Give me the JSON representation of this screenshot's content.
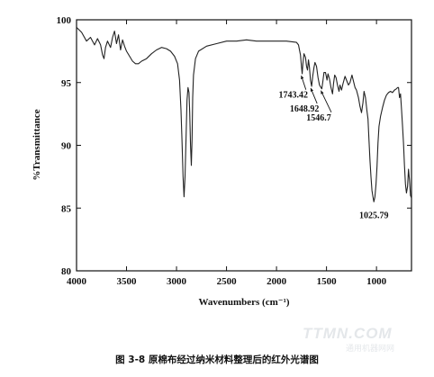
{
  "chart_data": {
    "type": "line",
    "xlabel": "Wavenumbers (cm⁻¹)",
    "ylabel": "%Transmittance",
    "xlim": [
      4000,
      650
    ],
    "ylim": [
      80,
      100
    ],
    "x_ticks": [
      4000,
      3500,
      3000,
      2500,
      2000,
      1500,
      1000
    ],
    "y_ticks": [
      80,
      85,
      90,
      95,
      100
    ],
    "grid": false,
    "series": [
      {
        "color": "#222222",
        "points": [
          [
            4000,
            99.4
          ],
          [
            3950,
            99.0
          ],
          [
            3900,
            98.3
          ],
          [
            3860,
            98.6
          ],
          [
            3820,
            98.0
          ],
          [
            3790,
            98.5
          ],
          [
            3760,
            98.0
          ],
          [
            3740,
            97.2
          ],
          [
            3725,
            96.9
          ],
          [
            3710,
            97.8
          ],
          [
            3690,
            98.3
          ],
          [
            3660,
            97.8
          ],
          [
            3640,
            98.6
          ],
          [
            3620,
            99.1
          ],
          [
            3600,
            98.1
          ],
          [
            3580,
            98.8
          ],
          [
            3560,
            97.6
          ],
          [
            3540,
            98.4
          ],
          [
            3520,
            97.9
          ],
          [
            3500,
            97.5
          ],
          [
            3470,
            97.1
          ],
          [
            3440,
            96.7
          ],
          [
            3410,
            96.5
          ],
          [
            3380,
            96.5
          ],
          [
            3350,
            96.7
          ],
          [
            3300,
            96.9
          ],
          [
            3250,
            97.3
          ],
          [
            3200,
            97.6
          ],
          [
            3150,
            97.8
          ],
          [
            3100,
            97.7
          ],
          [
            3060,
            97.5
          ],
          [
            3020,
            97.1
          ],
          [
            2990,
            96.5
          ],
          [
            2970,
            95.2
          ],
          [
            2955,
            92.8
          ],
          [
            2945,
            90.2
          ],
          [
            2935,
            87.5
          ],
          [
            2925,
            85.9
          ],
          [
            2915,
            87.5
          ],
          [
            2905,
            90.5
          ],
          [
            2895,
            93.6
          ],
          [
            2885,
            94.6
          ],
          [
            2875,
            94.2
          ],
          [
            2868,
            92.6
          ],
          [
            2860,
            90.0
          ],
          [
            2852,
            88.4
          ],
          [
            2845,
            90.5
          ],
          [
            2838,
            93.8
          ],
          [
            2830,
            95.6
          ],
          [
            2810,
            96.9
          ],
          [
            2780,
            97.5
          ],
          [
            2700,
            97.9
          ],
          [
            2600,
            98.1
          ],
          [
            2500,
            98.3
          ],
          [
            2400,
            98.3
          ],
          [
            2300,
            98.4
          ],
          [
            2200,
            98.3
          ],
          [
            2100,
            98.3
          ],
          [
            2000,
            98.3
          ],
          [
            1900,
            98.3
          ],
          [
            1800,
            98.2
          ],
          [
            1780,
            98.0
          ],
          [
            1760,
            97.2
          ],
          [
            1750,
            96.2
          ],
          [
            1743,
            95.7
          ],
          [
            1736,
            96.5
          ],
          [
            1725,
            97.3
          ],
          [
            1710,
            97.0
          ],
          [
            1700,
            96.3
          ],
          [
            1690,
            96.0
          ],
          [
            1680,
            96.8
          ],
          [
            1670,
            96.2
          ],
          [
            1660,
            95.2
          ],
          [
            1649,
            94.7
          ],
          [
            1638,
            95.5
          ],
          [
            1625,
            96.2
          ],
          [
            1615,
            96.6
          ],
          [
            1600,
            96.3
          ],
          [
            1585,
            95.4
          ],
          [
            1570,
            94.8
          ],
          [
            1555,
            94.6
          ],
          [
            1547,
            94.5
          ],
          [
            1538,
            95.0
          ],
          [
            1525,
            95.8
          ],
          [
            1510,
            95.8
          ],
          [
            1495,
            95.2
          ],
          [
            1485,
            95.7
          ],
          [
            1470,
            95.3
          ],
          [
            1455,
            94.6
          ],
          [
            1440,
            94.1
          ],
          [
            1430,
            94.9
          ],
          [
            1418,
            95.6
          ],
          [
            1405,
            95.4
          ],
          [
            1390,
            94.8
          ],
          [
            1375,
            94.3
          ],
          [
            1365,
            94.8
          ],
          [
            1350,
            94.4
          ],
          [
            1335,
            94.9
          ],
          [
            1315,
            95.5
          ],
          [
            1300,
            95.2
          ],
          [
            1280,
            94.8
          ],
          [
            1265,
            95.0
          ],
          [
            1245,
            95.6
          ],
          [
            1230,
            95.1
          ],
          [
            1215,
            94.6
          ],
          [
            1200,
            94.4
          ],
          [
            1180,
            93.8
          ],
          [
            1165,
            93.1
          ],
          [
            1150,
            92.6
          ],
          [
            1135,
            93.4
          ],
          [
            1125,
            94.3
          ],
          [
            1110,
            93.8
          ],
          [
            1095,
            92.7
          ],
          [
            1085,
            92.1
          ],
          [
            1075,
            90.4
          ],
          [
            1065,
            88.8
          ],
          [
            1055,
            87.5
          ],
          [
            1045,
            86.4
          ],
          [
            1035,
            85.9
          ],
          [
            1026,
            85.5
          ],
          [
            1016,
            85.9
          ],
          [
            1005,
            86.9
          ],
          [
            995,
            88.3
          ],
          [
            985,
            90.2
          ],
          [
            975,
            91.5
          ],
          [
            960,
            92.3
          ],
          [
            940,
            93.0
          ],
          [
            920,
            93.6
          ],
          [
            900,
            94.0
          ],
          [
            880,
            94.2
          ],
          [
            860,
            94.3
          ],
          [
            840,
            94.2
          ],
          [
            820,
            94.4
          ],
          [
            800,
            94.5
          ],
          [
            790,
            94.6
          ],
          [
            780,
            94.6
          ],
          [
            770,
            93.8
          ],
          [
            760,
            94.1
          ],
          [
            750,
            92.9
          ],
          [
            740,
            91.6
          ],
          [
            730,
            90.2
          ],
          [
            720,
            88.4
          ],
          [
            710,
            86.9
          ],
          [
            700,
            86.2
          ],
          [
            690,
            86.7
          ],
          [
            680,
            88.1
          ],
          [
            670,
            87.2
          ],
          [
            660,
            86.0
          ],
          [
            650,
            85.8
          ]
        ]
      }
    ],
    "annotations": [
      {
        "label": "1743.42",
        "x": 1743.42,
        "y": 95.7
      },
      {
        "label": "1648.92",
        "x": 1648.92,
        "y": 94.7
      },
      {
        "label": "1546.7",
        "x": 1546.7,
        "y": 94.5
      },
      {
        "label": "1025.79",
        "x": 1025.79,
        "y": 85.5
      }
    ]
  },
  "caption": "图 3-8 原棉布经过纳米材料整理后的红外光谱图",
  "watermark": "TTMN.COM",
  "watermark_sub": "通用机器网网"
}
